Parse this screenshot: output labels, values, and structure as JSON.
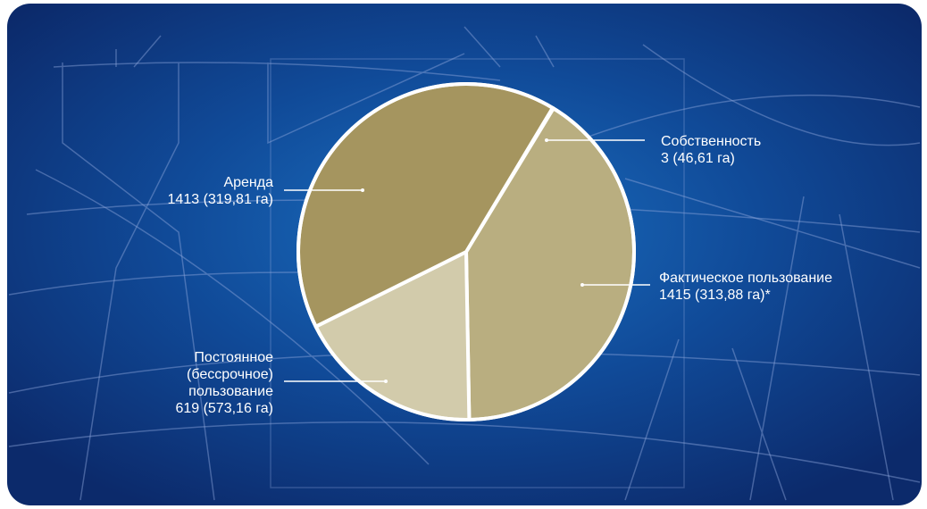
{
  "chart_data": {
    "type": "pie",
    "categories": [
      "Собственность",
      "Фактическое пользование",
      "Постоянное (бессрочное) пользование",
      "Аренда"
    ],
    "values": [
      3,
      1415,
      619,
      1413
    ],
    "value_labels": [
      "3 (46,61 га)",
      "1415 (313,88 га)*",
      "619 (573,16 га)",
      "1413 (319,81 га)"
    ],
    "colors": [
      "#e2dece",
      "#b9ae80",
      "#d2cbab",
      "#a5955f"
    ]
  }
}
